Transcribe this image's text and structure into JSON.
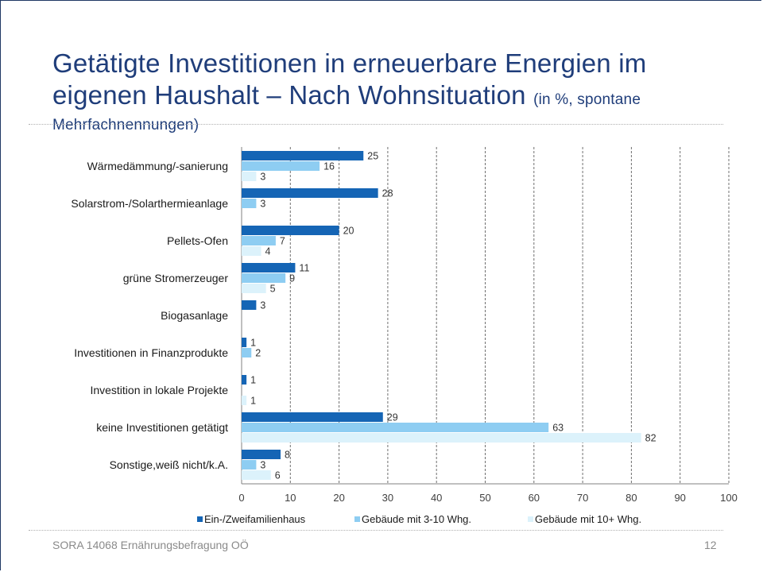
{
  "slide": {
    "title": "Getätigte Investitionen in erneuerbare Energien im eigenen Haushalt – Nach Wohnsituation",
    "subtitle_part1": "(in %, spontane",
    "subtitle_part2": "Mehrfachnennungen)",
    "footer_source": "SORA 14068 Ernährungsbefragung OÖ",
    "page_number": "12"
  },
  "colors": {
    "title": "#1f3d7a",
    "series1": "#1565b5",
    "series2": "#8ecdf2",
    "series3": "#dcf2fb"
  },
  "chart_data": {
    "type": "bar",
    "orientation": "horizontal",
    "title": "",
    "xlabel": "",
    "ylabel": "",
    "xlim": [
      0,
      100
    ],
    "ticks": [
      0,
      10,
      20,
      30,
      40,
      50,
      60,
      70,
      80,
      90,
      100
    ],
    "grid": "vertical dashed",
    "legend_position": "bottom",
    "categories": [
      "Wärmedämmung/-sanierung",
      "Solarstrom-/Solarthermieanlage",
      "Pellets-Ofen",
      "grüne Stromerzeuger",
      "Biogasanlage",
      "Investitionen in Finanzprodukte",
      "Investition in lokale Projekte",
      "keine Investitionen getätigt",
      "Sonstige,weiß nicht/k.A."
    ],
    "series": [
      {
        "name": "Ein-/Zweifamilienhaus",
        "values": [
          25,
          28,
          20,
          11,
          3,
          1,
          1,
          29,
          8
        ]
      },
      {
        "name": "Gebäude mit 3-10 Whg.",
        "values": [
          16,
          3,
          7,
          9,
          null,
          2,
          null,
          63,
          3
        ]
      },
      {
        "name": "Gebäude mit 10+ Whg.",
        "values": [
          3,
          null,
          4,
          5,
          null,
          null,
          1,
          82,
          6
        ]
      }
    ]
  }
}
